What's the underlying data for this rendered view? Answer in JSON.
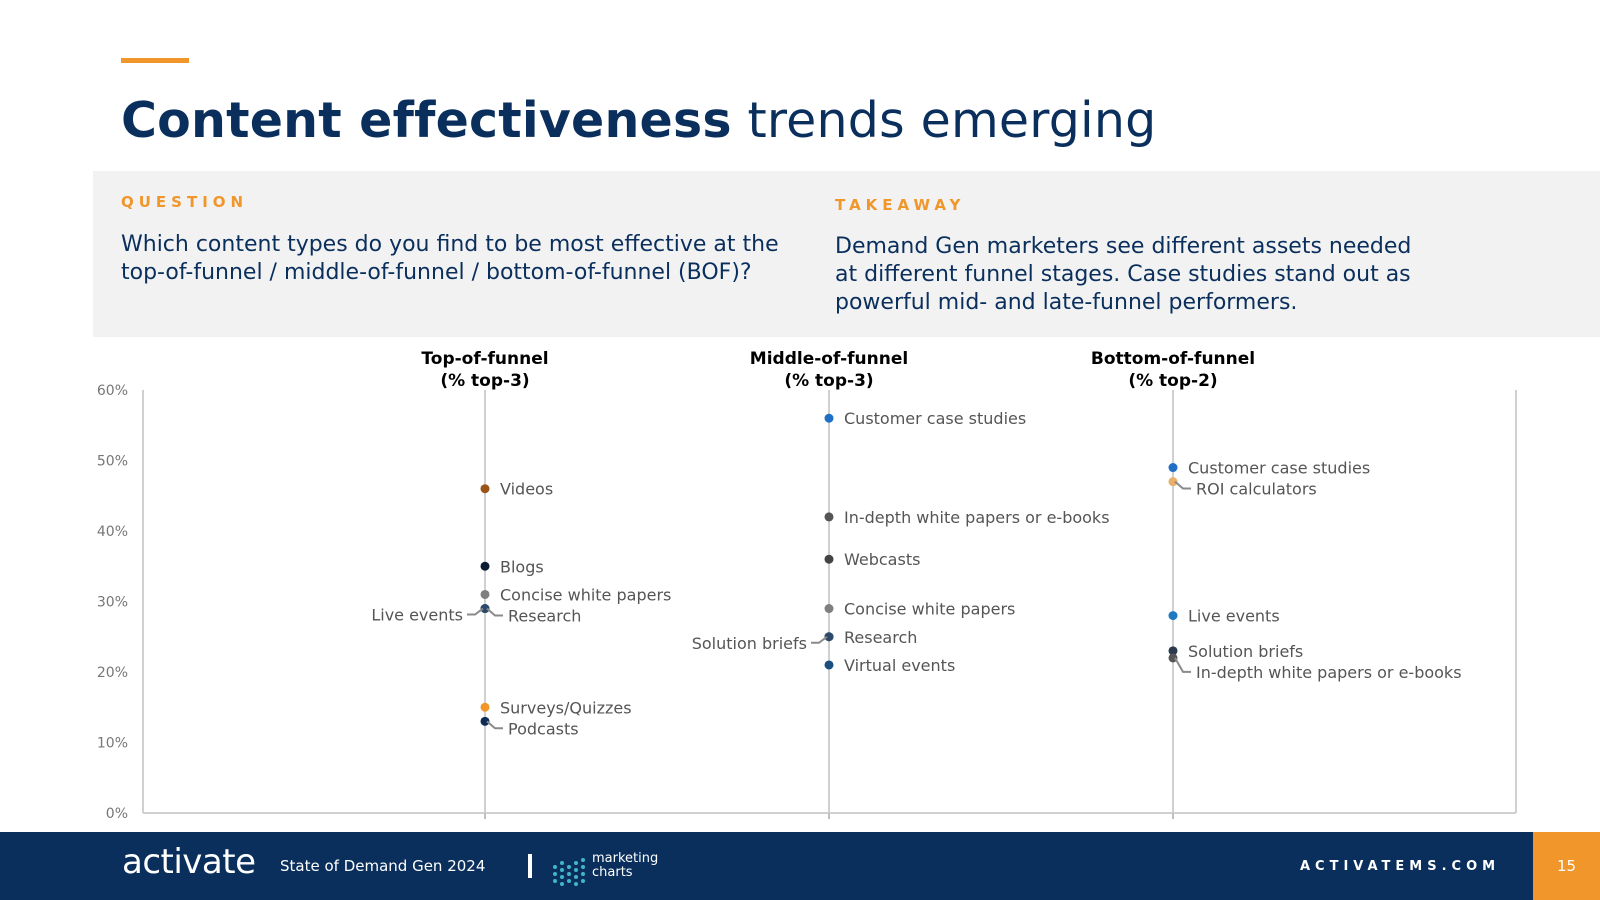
{
  "title": {
    "bold": "Content effectiveness",
    "regular": "trends emerging"
  },
  "question": {
    "label": "QUESTION",
    "line1": "Which content types do you find to be most effective at the",
    "line2": "top-of-funnel / middle-of-funnel / bottom-of-funnel (BOF)?"
  },
  "takeaway": {
    "label": "TAKEAWAY",
    "line1": "Demand Gen marketers see different assets needed",
    "line2": "at different funnel stages. Case studies stand out as",
    "line3": "powerful mid- and late-funnel performers."
  },
  "colors": {
    "navy": "#0a2f5c",
    "orange": "#f0962a",
    "panel": "#f2f2f2"
  },
  "chart_data": {
    "type": "scatter",
    "ylim": [
      0,
      60
    ],
    "yticks": [
      "0%",
      "10%",
      "20%",
      "30%",
      "40%",
      "50%",
      "60%"
    ],
    "columns": [
      {
        "name": "Top-of-funnel",
        "sub": "(% top-3)",
        "points": [
          {
            "label": "Videos",
            "value": 46,
            "color": "#9a5516",
            "side": "right"
          },
          {
            "label": "Blogs",
            "value": 35,
            "color": "#0d1b33",
            "side": "right"
          },
          {
            "label": "Concise white papers",
            "value": 31,
            "color": "#7f7f7f",
            "side": "right"
          },
          {
            "label": "Live events",
            "value": 29,
            "color": "#1f6fb5",
            "side": "left"
          },
          {
            "label": "Research",
            "value": 29,
            "color": "#2e4a6b",
            "side": "right"
          },
          {
            "label": "Surveys/Quizzes",
            "value": 15,
            "color": "#f0962a",
            "side": "right"
          },
          {
            "label": "Podcasts",
            "value": 13,
            "color": "#0d2b55",
            "side": "right"
          }
        ]
      },
      {
        "name": "Middle-of-funnel",
        "sub": "(% top-3)",
        "points": [
          {
            "label": "Customer case studies",
            "value": 56,
            "color": "#1f6fc5",
            "side": "right"
          },
          {
            "label": "In-depth white papers or e-books",
            "value": 42,
            "color": "#555555",
            "side": "right"
          },
          {
            "label": "Webcasts",
            "value": 36,
            "color": "#444444",
            "side": "right"
          },
          {
            "label": "Concise white papers",
            "value": 29,
            "color": "#7f7f7f",
            "side": "right"
          },
          {
            "label": "Solution briefs",
            "value": 25,
            "color": "#2b3a4d",
            "side": "left"
          },
          {
            "label": "Research",
            "value": 25,
            "color": "#2e4a6b",
            "side": "right"
          },
          {
            "label": "Virtual events",
            "value": 21,
            "color": "#1a4f80",
            "side": "right"
          }
        ]
      },
      {
        "name": "Bottom-of-funnel",
        "sub": "(% top-2)",
        "points": [
          {
            "label": "Customer case studies",
            "value": 49,
            "color": "#1f6fc5",
            "side": "right"
          },
          {
            "label": "ROI calculators",
            "value": 47,
            "color": "#e8b06a",
            "side": "right"
          },
          {
            "label": "Live events",
            "value": 28,
            "color": "#1f7ac0",
            "side": "right"
          },
          {
            "label": "Solution briefs",
            "value": 23,
            "color": "#2b3a4d",
            "side": "right"
          },
          {
            "label": "In-depth white papers or e-books",
            "value": 22,
            "color": "#555555",
            "side": "right"
          }
        ]
      }
    ]
  },
  "footer": {
    "logo": "activate",
    "report": "State of Demand Gen 2024",
    "partner_line1": "marketing",
    "partner_line2": "charts",
    "site": "ACTIVATEMS.COM",
    "page": "15"
  }
}
